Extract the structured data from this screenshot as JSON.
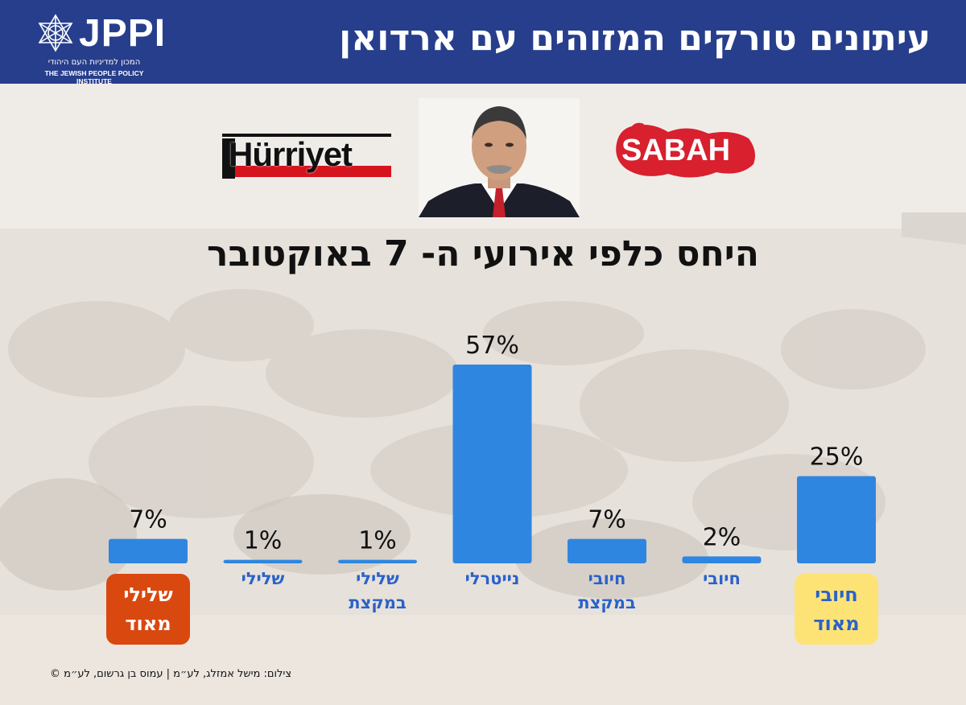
{
  "header": {
    "title": "עיתונים טורקים המזוהים עם ארדואן",
    "logo_text": "JPPI",
    "logo_subtitle_he": "המכון למדיניות העם היהודי",
    "logo_subtitle_en": "THE JEWISH PEOPLE POLICY INSTITUTE",
    "background_color": "#273e8c"
  },
  "newspapers": {
    "left": "Hürriyet",
    "right": "SABAH"
  },
  "photo_credit": "צילום: מישל אמזלג, לע״מ | עמוס בן גרשום, לע״מ ©",
  "chart_data": {
    "type": "bar",
    "title": "היחס כלפי אירועי ה- 7 באוקטובר",
    "categories": [
      "שלילי\nמאוד",
      "שלילי",
      "שלילי\nבמקצת",
      "נייטרלי",
      "חיובי\nבמקצת",
      "חיובי",
      "חיובי\nמאוד"
    ],
    "values": [
      7,
      1,
      1,
      57,
      7,
      2,
      25
    ],
    "value_labels": [
      "7%",
      "1%",
      "1%",
      "57%",
      "7%",
      "2%",
      "25%"
    ],
    "ylim": [
      0,
      60
    ],
    "grid": false,
    "bar_color": "#2f86e0",
    "label_color": "#2a62c8",
    "highlight": {
      "0": {
        "background": "#d9480f",
        "text_color": "#ffffff"
      },
      "6": {
        "background": "#fde376",
        "text_color": "#2a62c8"
      }
    }
  }
}
